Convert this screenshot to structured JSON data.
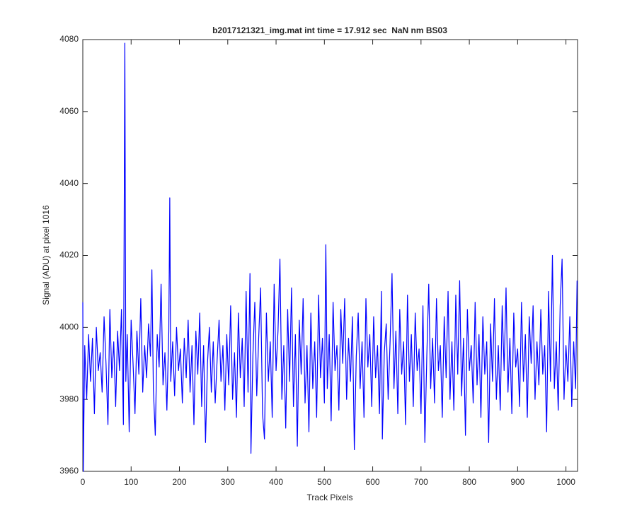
{
  "chart_data": {
    "type": "line",
    "title": "b2017121321_img.mat int time = 17.912 sec  NaN nm BS03",
    "x_label": "Track Pixels",
    "y_label": "Signal (ADU) at pixel 1016",
    "color": "#0000ff",
    "xlim": [
      0,
      1024
    ],
    "ylim": [
      3960,
      4080
    ],
    "xticks": [
      0,
      100,
      200,
      300,
      400,
      500,
      600,
      700,
      800,
      900,
      1000
    ],
    "yticks": [
      3960,
      3980,
      4000,
      4020,
      4040,
      4060,
      4080
    ],
    "x": [
      0,
      1,
      4,
      8,
      12,
      16,
      20,
      24,
      28,
      32,
      36,
      40,
      44,
      48,
      52,
      56,
      60,
      64,
      68,
      72,
      76,
      80,
      84,
      87,
      89,
      92,
      96,
      100,
      104,
      108,
      112,
      116,
      120,
      124,
      128,
      132,
      136,
      140,
      143,
      146,
      150,
      154,
      158,
      162,
      166,
      170,
      174,
      178,
      180,
      182,
      186,
      190,
      194,
      198,
      202,
      206,
      210,
      214,
      218,
      222,
      226,
      230,
      234,
      238,
      242,
      246,
      250,
      254,
      258,
      262,
      266,
      270,
      274,
      278,
      282,
      286,
      290,
      294,
      298,
      302,
      306,
      310,
      314,
      318,
      322,
      326,
      330,
      334,
      338,
      342,
      346,
      348,
      352,
      356,
      360,
      364,
      368,
      372,
      376,
      380,
      384,
      388,
      392,
      396,
      400,
      404,
      408,
      412,
      416,
      420,
      424,
      428,
      432,
      436,
      440,
      444,
      448,
      452,
      456,
      460,
      464,
      468,
      472,
      476,
      480,
      484,
      488,
      492,
      496,
      500,
      503,
      506,
      510,
      514,
      518,
      522,
      526,
      530,
      534,
      538,
      542,
      546,
      550,
      554,
      558,
      562,
      566,
      570,
      574,
      578,
      582,
      586,
      590,
      594,
      598,
      602,
      606,
      610,
      614,
      618,
      620,
      624,
      628,
      632,
      636,
      640,
      644,
      648,
      652,
      656,
      660,
      664,
      668,
      672,
      676,
      680,
      684,
      688,
      692,
      696,
      700,
      704,
      708,
      712,
      716,
      720,
      724,
      728,
      732,
      736,
      740,
      744,
      748,
      752,
      756,
      760,
      764,
      768,
      772,
      776,
      780,
      784,
      788,
      792,
      796,
      800,
      804,
      808,
      812,
      816,
      820,
      824,
      828,
      832,
      836,
      840,
      844,
      848,
      852,
      856,
      860,
      864,
      868,
      872,
      876,
      880,
      884,
      888,
      892,
      896,
      900,
      904,
      908,
      912,
      916,
      920,
      924,
      928,
      932,
      936,
      940,
      944,
      948,
      952,
      956,
      960,
      964,
      968,
      972,
      976,
      980,
      984,
      988,
      992,
      996,
      1000,
      1004,
      1008,
      1012,
      1016,
      1020,
      1023
    ],
    "values": [
      4007,
      3960,
      3995,
      3980,
      3998,
      3985,
      3997,
      3976,
      4000,
      3988,
      3993,
      3982,
      4003,
      3990,
      3973,
      4005,
      3986,
      3996,
      3978,
      3999,
      3988,
      4005,
      3973,
      4079,
      3985,
      3998,
      3971,
      4002,
      3990,
      3976,
      3999,
      3987,
      4008,
      3982,
      3995,
      3986,
      4001,
      3992,
      4016,
      3983,
      3970,
      3998,
      3989,
      4012,
      3984,
      3993,
      3977,
      3999,
      4036,
      3985,
      3996,
      3981,
      4000,
      3988,
      3994,
      3979,
      3997,
      3986,
      4002,
      3982,
      3995,
      3973,
      3999,
      3987,
      4004,
      3978,
      3995,
      3968,
      3990,
      4000,
      3982,
      3996,
      3979,
      3991,
      4002,
      3985,
      3995,
      3977,
      3998,
      3984,
      4006,
      3980,
      3993,
      3975,
      4004,
      3986,
      3997,
      3978,
      4010,
      3982,
      4015,
      3965,
      3992,
      4007,
      3981,
      3997,
      4011,
      3976,
      3969,
      4004,
      3985,
      3996,
      3975,
      4012,
      3988,
      3999,
      4019,
      3980,
      3995,
      3972,
      4005,
      3985,
      4011,
      3978,
      3998,
      3967,
      4002,
      3987,
      4008,
      3979,
      3995,
      3971,
      4004,
      3983,
      3996,
      3975,
      4009,
      3986,
      3997,
      3979,
      4023,
      3983,
      3998,
      3974,
      4007,
      3988,
      3995,
      3977,
      4005,
      3990,
      4008,
      3980,
      3997,
      3985,
      4003,
      3966,
      3992,
      4004,
      3983,
      3996,
      3975,
      4008,
      3989,
      3998,
      3978,
      4003,
      3986,
      3995,
      3976,
      4010,
      3969,
      3993,
      4001,
      3980,
      3996,
      4015,
      3983,
      3999,
      3976,
      4005,
      3987,
      3996,
      3973,
      4009,
      3985,
      3998,
      3978,
      4004,
      3988,
      3994,
      3976,
      4006,
      3968,
      3992,
      4012,
      3983,
      3997,
      3979,
      4008,
      3988,
      3995,
      3975,
      4003,
      3986,
      4010,
      3980,
      3996,
      3977,
      4009,
      3987,
      4013,
      3981,
      3997,
      3970,
      4005,
      3988,
      3995,
      3979,
      4007,
      3984,
      3998,
      3975,
      4003,
      3987,
      3996,
      3968,
      4001,
      3985,
      4008,
      3980,
      3995,
      3977,
      4006,
      3988,
      4011,
      3982,
      3997,
      3976,
      4004,
      3989,
      3994,
      3978,
      4007,
      3985,
      3998,
      3975,
      4003,
      3990,
      4006,
      3980,
      3996,
      3984,
      4005,
      3987,
      3995,
      3971,
      4010,
      3985,
      4020,
      3983,
      3996,
      3977,
      4006,
      4019,
      3980,
      3995,
      3985,
      4003,
      3978,
      3996,
      3983,
      4013
    ]
  }
}
